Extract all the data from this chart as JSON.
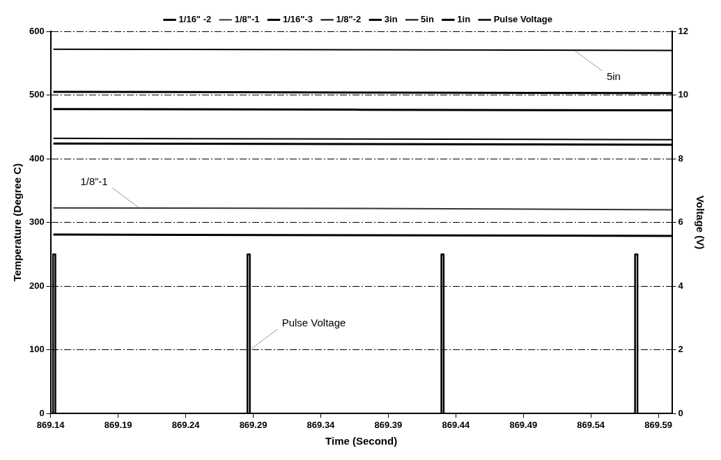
{
  "chart_data": {
    "type": "line",
    "xlabel": "Time (Second)",
    "ylabel": "Temperature (Degree C)",
    "y2label": "Voltage (V)",
    "xlim": [
      869.14,
      869.6
    ],
    "xticks": [
      869.14,
      869.19,
      869.24,
      869.29,
      869.34,
      869.39,
      869.44,
      869.49,
      869.54,
      869.59
    ],
    "ylim": [
      0,
      600
    ],
    "yticks": [
      0,
      100,
      200,
      300,
      400,
      500,
      600
    ],
    "y2lim": [
      0,
      12
    ],
    "y2ticks": [
      0,
      2,
      4,
      6,
      8,
      10,
      12
    ],
    "grid": "y",
    "legend": "top",
    "marker": "none",
    "line_style": "solid",
    "series": [
      {
        "name": "1/16\" -2",
        "color": "#000000",
        "x": [
          869.142,
          869.37,
          869.6
        ],
        "values": [
          505,
          504,
          503
        ]
      },
      {
        "name": "1/8\"-1",
        "color": "#333333",
        "x": [
          869.142,
          869.37,
          869.6
        ],
        "values": [
          323,
          322,
          320
        ]
      },
      {
        "name": "1/16\"-3",
        "color": "#000000",
        "x": [
          869.142,
          869.37,
          869.6
        ],
        "values": [
          478,
          477,
          476
        ]
      },
      {
        "name": "1/8\"-2",
        "color": "#000000",
        "x": [
          869.142,
          869.37,
          869.6
        ],
        "values": [
          432,
          431,
          430
        ]
      },
      {
        "name": "3in",
        "color": "#000000",
        "x": [
          869.142,
          869.37,
          869.6
        ],
        "values": [
          424,
          423,
          422
        ]
      },
      {
        "name": "5in",
        "color": "#000000",
        "x": [
          869.142,
          869.37,
          869.6
        ],
        "values": [
          572,
          571,
          570
        ]
      },
      {
        "name": "1in",
        "color": "#000000",
        "x": [
          869.142,
          869.37,
          869.6
        ],
        "values": [
          281,
          280,
          279
        ]
      },
      {
        "name": "Pulse Voltage",
        "color": "#000000",
        "axis": "y2",
        "x": [
          869.14,
          869.1418,
          869.1418,
          869.1435,
          869.1435,
          869.2857,
          869.2857,
          869.2875,
          869.2875,
          869.4293,
          869.4293,
          869.431,
          869.431,
          869.5727,
          869.5727,
          869.5745,
          869.5745,
          869.6
        ],
        "values": [
          0,
          0,
          5,
          5,
          0,
          0,
          5,
          5,
          0,
          0,
          5,
          5,
          0,
          0,
          5,
          5,
          0,
          0
        ]
      }
    ],
    "annotations": [
      {
        "text": "5in",
        "x": 869.528,
        "y": 570
      },
      {
        "text": "1/8”-1",
        "x": 869.206,
        "y": 322
      },
      {
        "text": "Pulse Voltage",
        "x": 869.2875,
        "y": 100
      }
    ]
  }
}
